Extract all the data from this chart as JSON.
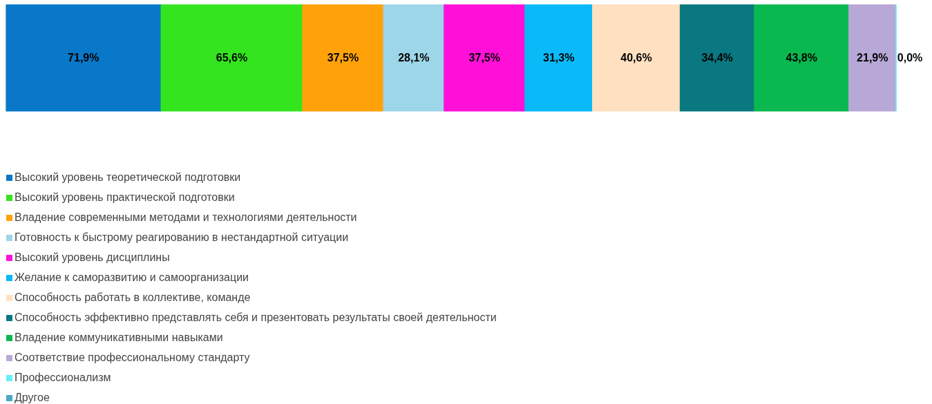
{
  "chart_data": {
    "type": "bar",
    "orientation": "horizontal",
    "stacked": true,
    "categories": [
      null
    ],
    "legend": "bottom",
    "grid": false,
    "tick_labels": false,
    "series": [
      {
        "name": "Высокий уровень теоретической подготовки",
        "color": "#0a78c8",
        "values": [
          71.9
        ],
        "value_labels": [
          "71,9%"
        ]
      },
      {
        "name": "Высокий уровень практической подготовки",
        "color": "#33e41e",
        "values": [
          65.6
        ],
        "value_labels": [
          "65,6%"
        ]
      },
      {
        "name": "Владение современными методами и технологиями деятельности",
        "color": "#ffa20a",
        "values": [
          37.5
        ],
        "value_labels": [
          "37,5%"
        ]
      },
      {
        "name": "Готовность к быстрому реагированию в нестандартной ситуации",
        "color": "#9cd6e8",
        "values": [
          28.1
        ],
        "value_labels": [
          "28,1%"
        ]
      },
      {
        "name": "Высокий уровень дисциплины",
        "color": "#ff10d8",
        "values": [
          37.5
        ],
        "value_labels": [
          "37,5%"
        ]
      },
      {
        "name": "Желание к саморазвитию и самоорганизации",
        "color": "#0abaf8",
        "values": [
          31.3
        ],
        "value_labels": [
          "31,3%"
        ]
      },
      {
        "name": "Способность работать в коллективе, команде",
        "color": "#ffe0c0",
        "values": [
          40.6
        ],
        "value_labels": [
          "40,6%"
        ]
      },
      {
        "name": "Способность эффективно представлять себя и презентовать результаты своей деятельности",
        "color": "#0a7880",
        "values": [
          34.4
        ],
        "value_labels": [
          "34,4%"
        ]
      },
      {
        "name": "Владение коммуникативными навыками",
        "color": "#0ab850",
        "values": [
          43.8
        ],
        "value_labels": [
          "43,8%"
        ]
      },
      {
        "name": "Соответствие профессиональному стандарту",
        "color": "#b8a8d8",
        "values": [
          21.9
        ],
        "value_labels": [
          "21,9%"
        ]
      },
      {
        "name": "Профессионализм",
        "color": "#66f0f8",
        "values": [
          0.0
        ],
        "value_labels": [
          "0,0%"
        ]
      },
      {
        "name": "Другое",
        "color": "#4aa8c8",
        "values": [
          null
        ]
      }
    ]
  }
}
